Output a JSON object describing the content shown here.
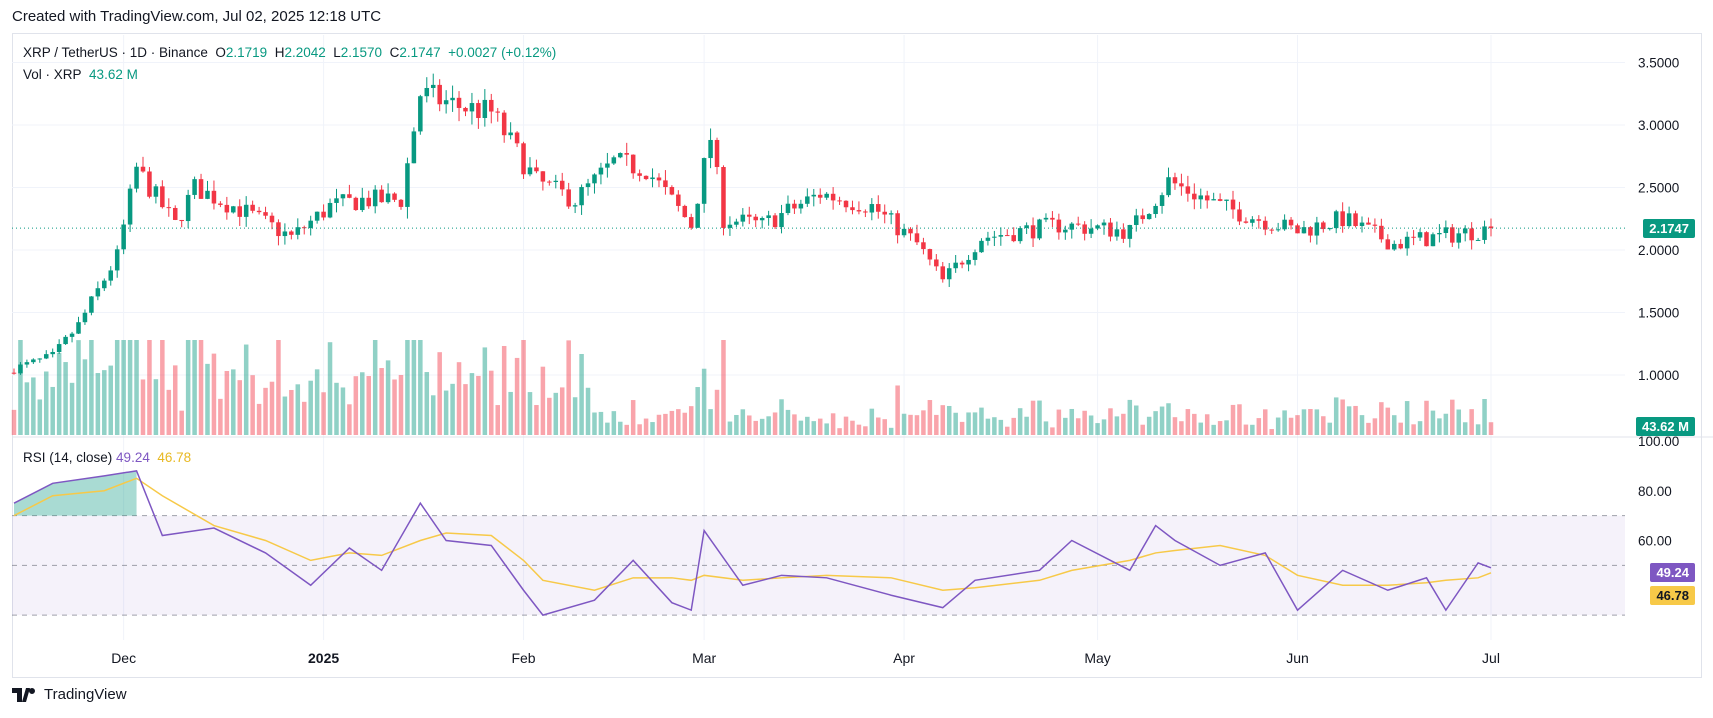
{
  "caption": "Created with TradingView.com, Jul 02, 2025 12:18 UTC",
  "footer": {
    "brand": "TradingView",
    "logo_icon": "tradingview-logo-icon"
  },
  "colors": {
    "up": "#089981",
    "down": "#f23645",
    "rsi": "#7e57c2",
    "rsi_ma": "#f7c948",
    "grid": "#f0f3fa",
    "price_line": "#089981"
  },
  "legend": {
    "symbol": "XRP / TetherUS · 1D · Binance",
    "o_label": "O",
    "o": "2.1719",
    "h_label": "H",
    "h": "2.2042",
    "l_label": "L",
    "l": "2.1570",
    "c_label": "C",
    "c": "2.1747",
    "change": "+0.0027 (+0.12%)",
    "vol_label": "Vol · XRP",
    "vol": "43.62 M",
    "rsi_label": "RSI (14, close)",
    "rsi": "49.24",
    "rsi_ma": "46.78"
  },
  "tags": {
    "price": "2.1747",
    "volume": "43.62 M",
    "rsi": "49.24",
    "rsi_ma": "46.78"
  },
  "chart_data": [
    {
      "type": "candlestick",
      "title": "XRP / TetherUS · 1D · Binance",
      "price_ticks": [
        "3.5000",
        "3.0000",
        "2.5000",
        "2.0000",
        "1.5000",
        "1.0000"
      ],
      "x_ticks": [
        "Dec",
        "2025",
        "Feb",
        "Mar",
        "Apr",
        "May",
        "Jun",
        "Jul"
      ],
      "last_price": 2.1747,
      "ohlc_anchors": {
        "x": [
          "Nov 14",
          "Nov 20",
          "Nov 24",
          "Nov 30",
          "Dec 03",
          "Dec 09",
          "Dec 12",
          "Dec 20",
          "Dec 27",
          "Jan 02",
          "Jan 07",
          "Jan 13",
          "Jan 16",
          "Jan 22",
          "Jan 27",
          "Feb 01",
          "Feb 03",
          "Feb 09",
          "Feb 15",
          "Feb 20",
          "Feb 27",
          "Mar 02",
          "Mar 04",
          "Mar 10",
          "Mar 19",
          "Mar 27",
          "Apr 03",
          "Apr 07",
          "Apr 13",
          "Apr 25",
          "May 06",
          "May 12",
          "May 20",
          "Jun 01",
          "Jun 08",
          "Jun 16",
          "Jun 22",
          "Jul 01"
        ],
        "close": [
          1.05,
          1.15,
          1.4,
          1.95,
          2.65,
          2.2,
          2.5,
          2.3,
          2.1,
          2.35,
          2.4,
          2.4,
          3.25,
          3.15,
          3.1,
          2.7,
          2.55,
          2.4,
          2.7,
          2.65,
          2.2,
          2.9,
          2.25,
          2.2,
          2.45,
          2.35,
          2.05,
          1.75,
          2.1,
          2.2,
          2.15,
          2.55,
          2.35,
          2.15,
          2.25,
          2.05,
          2.1,
          2.17
        ]
      }
    },
    {
      "type": "bar",
      "title": "Vol · XRP",
      "last_value": "43.62 M"
    },
    {
      "type": "line",
      "title": "RSI (14, close)",
      "y_ticks": [
        "100.00",
        "80.00",
        "60.00"
      ],
      "bands": [
        30,
        50,
        70
      ],
      "x": [
        "Nov 14",
        "Nov 20",
        "Nov 28",
        "Dec 03",
        "Dec 07",
        "Dec 15",
        "Dec 23",
        "Dec 30",
        "Jan 05",
        "Jan 10",
        "Jan 16",
        "Jan 20",
        "Jan 27",
        "Feb 01",
        "Feb 04",
        "Feb 12",
        "Feb 18",
        "Feb 24",
        "Feb 27",
        "Mar 01",
        "Mar 07",
        "Mar 13",
        "Mar 20",
        "Mar 30",
        "Apr 07",
        "Apr 12",
        "Apr 22",
        "Apr 27",
        "May 06",
        "May 10",
        "May 13",
        "May 20",
        "May 27",
        "Jun 01",
        "Jun 08",
        "Jun 15",
        "Jun 21",
        "Jun 24",
        "Jun 29",
        "Jul 01"
      ],
      "rsi": [
        75,
        83,
        86,
        88,
        62,
        65,
        55,
        42,
        57,
        48,
        75,
        60,
        58,
        40,
        30,
        36,
        52,
        35,
        32,
        64,
        42,
        46,
        45,
        38,
        33,
        44,
        48,
        60,
        48,
        66,
        60,
        50,
        55,
        32,
        48,
        40,
        45,
        32,
        51,
        49
      ],
      "rsi_ma": [
        70,
        78,
        80,
        85,
        78,
        66,
        60,
        52,
        55,
        54,
        60,
        63,
        62,
        52,
        44,
        40,
        45,
        45,
        44,
        46,
        44,
        45,
        46,
        45,
        40,
        41,
        44,
        48,
        52,
        55,
        56,
        58,
        54,
        46,
        42,
        42,
        43,
        44,
        45,
        47
      ]
    }
  ]
}
